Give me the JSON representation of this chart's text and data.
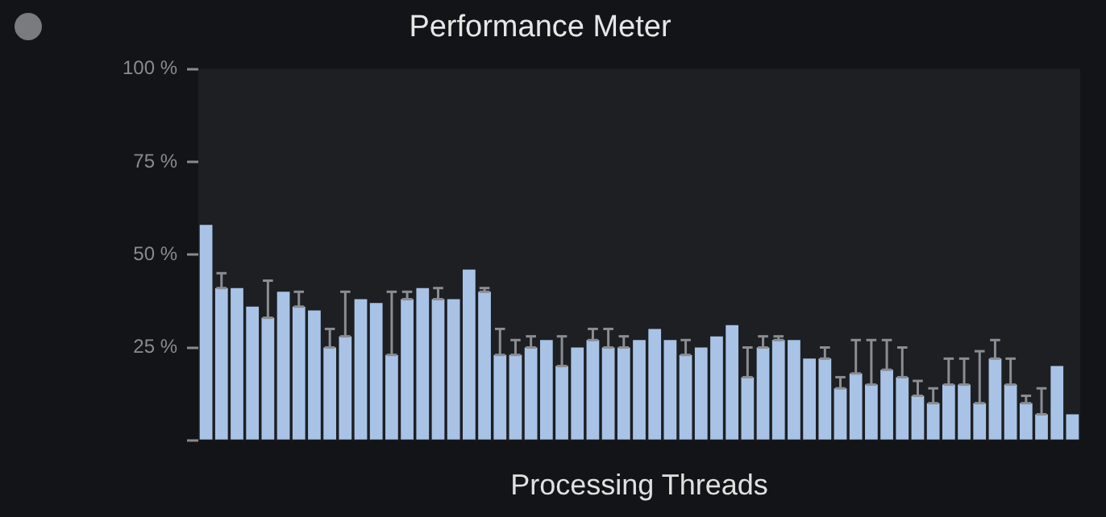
{
  "chart_data": {
    "type": "bar",
    "title": "Performance Meter",
    "xlabel": "Processing Threads",
    "categories": [
      null,
      null,
      null,
      null,
      null,
      null,
      null,
      null,
      null,
      null,
      null,
      null,
      null,
      null,
      null,
      null,
      null,
      null,
      null,
      null,
      null,
      null,
      null,
      null,
      null,
      null,
      null,
      null,
      null,
      null,
      null,
      null,
      null,
      null,
      null,
      null,
      null,
      null,
      null,
      null,
      null,
      null,
      null,
      null,
      null,
      null,
      null,
      null,
      null,
      null,
      null,
      null,
      null,
      null,
      null,
      null,
      null
    ],
    "series": [
      {
        "color": "#a9c3e6",
        "values": [
          58,
          41,
          41,
          36,
          33,
          40,
          36,
          35,
          25,
          28,
          38,
          37,
          23,
          38,
          41,
          38,
          38,
          46,
          40,
          23,
          23,
          25,
          27,
          20,
          25,
          27,
          25,
          25,
          27,
          30,
          27,
          23,
          25,
          28,
          31,
          17,
          25,
          27,
          27,
          22,
          22,
          14,
          18,
          15,
          19,
          17,
          12,
          10,
          15,
          15,
          10,
          22,
          15,
          10,
          7,
          20,
          7
        ],
        "errors": [
          null,
          [
            41,
            45
          ],
          null,
          null,
          [
            33,
            43
          ],
          null,
          [
            36,
            40
          ],
          null,
          [
            25,
            30
          ],
          [
            28,
            40
          ],
          null,
          null,
          [
            23,
            40
          ],
          [
            38,
            40
          ],
          null,
          [
            38,
            41
          ],
          null,
          null,
          [
            40,
            41
          ],
          [
            23,
            30
          ],
          [
            23,
            27
          ],
          [
            25,
            28
          ],
          null,
          [
            20,
            28
          ],
          null,
          [
            27,
            30
          ],
          [
            25,
            30
          ],
          [
            25,
            28
          ],
          null,
          null,
          null,
          [
            23,
            27
          ],
          null,
          null,
          null,
          [
            17,
            25
          ],
          [
            25,
            28
          ],
          [
            27,
            28
          ],
          null,
          null,
          [
            22,
            25
          ],
          [
            14,
            17
          ],
          [
            18,
            27
          ],
          [
            15,
            27
          ],
          [
            19,
            27
          ],
          [
            17,
            25
          ],
          [
            12,
            16
          ],
          [
            10,
            14
          ],
          [
            15,
            22
          ],
          [
            15,
            22
          ],
          [
            10,
            24
          ],
          [
            22,
            27
          ],
          [
            15,
            22
          ],
          [
            10,
            12
          ],
          [
            7,
            14
          ],
          null,
          null
        ]
      }
    ],
    "ylim": [
      0,
      100
    ],
    "yticks": [
      {
        "value": 0,
        "label": null
      },
      {
        "value": 25,
        "label": "25 %"
      },
      {
        "value": 50,
        "label": "50 %"
      },
      {
        "value": 75,
        "label": "75 %"
      },
      {
        "value": 100,
        "label": "100 %"
      }
    ],
    "tick_labels": "y",
    "grid": false,
    "legend": false
  }
}
